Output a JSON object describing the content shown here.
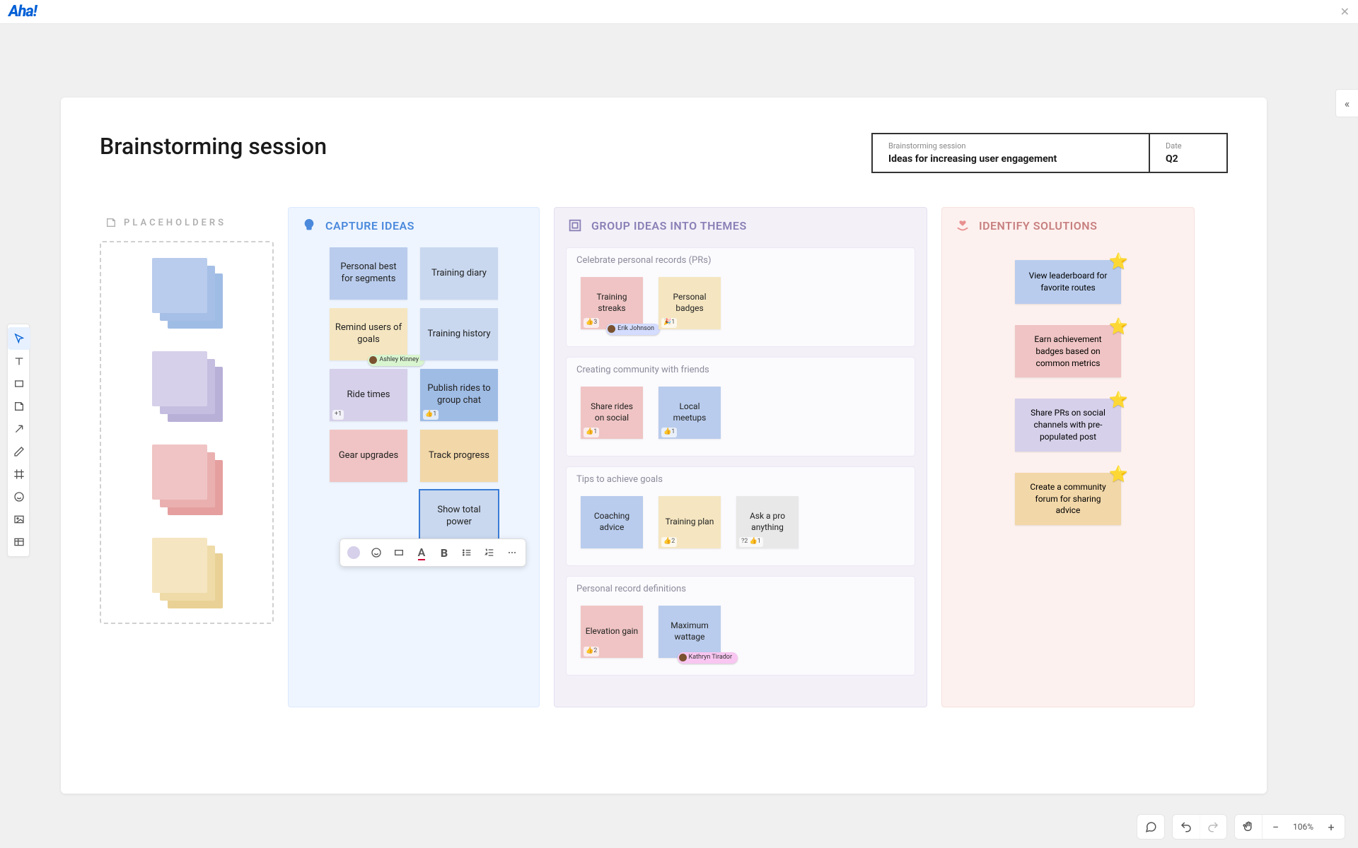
{
  "brand": "Aha!",
  "header": {
    "page_title": "Brainstorming session",
    "info": {
      "session_label": "Brainstorming session",
      "session_value": "Ideas for increasing user engagement",
      "date_label": "Date",
      "date_value": "Q2"
    }
  },
  "toolbar_left": [
    "pointer",
    "text",
    "square",
    "note",
    "arrow",
    "pencil",
    "frame",
    "emoji",
    "image",
    "table"
  ],
  "placeholders": {
    "title": "PLACEHOLDERS",
    "stacks": [
      {
        "colors": [
          "#b9cced",
          "#a6bfe6",
          "#9fbce5"
        ]
      },
      {
        "colors": [
          "#d6d0ea",
          "#c6bee0",
          "#b9b0d8"
        ]
      },
      {
        "colors": [
          "#f0c4c4",
          "#eab0b0",
          "#e59f9f"
        ]
      },
      {
        "colors": [
          "#f5e6c1",
          "#efdba8",
          "#e9d195"
        ]
      }
    ]
  },
  "columns": {
    "capture": {
      "title": "CAPTURE IDEAS",
      "accent": "#4a89dc",
      "notes": [
        {
          "text": "Personal best for segments",
          "color": "blue"
        },
        {
          "text": "Training diary",
          "color": "lblue"
        },
        {
          "text": "Remind users of goals",
          "color": "yellow",
          "tag": {
            "name": "Ashley Kinney",
            "style": "green"
          }
        },
        {
          "text": "Training history",
          "color": "lblue"
        },
        {
          "text": "Ride times",
          "color": "purple",
          "reaction": "+1"
        },
        {
          "text": "Publish rides to group chat",
          "color": "dblue",
          "reaction": "👍1"
        },
        {
          "text": "Gear upgrades",
          "color": "pink"
        },
        {
          "text": "Track progress",
          "color": "orange"
        },
        {
          "text": "Show total power",
          "color": "lblue",
          "selected": true
        }
      ],
      "float_toolbar": [
        "color",
        "emoji",
        "shape",
        "text-color",
        "bold",
        "list",
        "numbered-list",
        "more"
      ]
    },
    "themes": {
      "title": "GROUP IDEAS INTO THEMES",
      "accent": "#8a7fb5",
      "groups": [
        {
          "title": "Celebrate personal records (PRs)",
          "notes": [
            {
              "text": "Training streaks",
              "color": "pink",
              "reaction": "👍3",
              "tag": {
                "name": "Erik Johnson",
                "style": "blue"
              }
            },
            {
              "text": "Personal badges",
              "color": "yellow",
              "reaction": "🎉1"
            }
          ]
        },
        {
          "title": "Creating community with friends",
          "notes": [
            {
              "text": "Share rides on social",
              "color": "pink",
              "reaction": "👍1"
            },
            {
              "text": "Local meetups",
              "color": "blue",
              "reaction": "👍1"
            }
          ]
        },
        {
          "title": "Tips to achieve goals",
          "notes": [
            {
              "text": "Coaching advice",
              "color": "blue"
            },
            {
              "text": "Training plan",
              "color": "yellow",
              "reaction": "👍2"
            },
            {
              "text": "Ask a pro anything",
              "color": "lgray",
              "reaction": "?2 👍1"
            }
          ]
        },
        {
          "title": "Personal record definitions",
          "notes": [
            {
              "text": "Elevation gain",
              "color": "pink",
              "reaction": "👍2"
            },
            {
              "text": "Maximum wattage",
              "color": "blue",
              "tag": {
                "name": "Kathryn Tirador",
                "style": "pink"
              }
            }
          ]
        }
      ]
    },
    "solutions": {
      "title": "IDENTIFY SOLUTIONS",
      "accent": "#c77f7f",
      "notes": [
        {
          "text": "View leaderboard for favorite routes",
          "color": "blue",
          "star": true
        },
        {
          "text": "Earn achievement badges based on common metrics",
          "color": "pink",
          "star": true
        },
        {
          "text": "Share PRs on social channels with pre-populated post",
          "color": "purple",
          "star": true
        },
        {
          "text": "Create a community forum for sharing advice",
          "color": "orange",
          "star": true
        }
      ]
    }
  },
  "bottom_bar": {
    "zoom": "106%"
  }
}
